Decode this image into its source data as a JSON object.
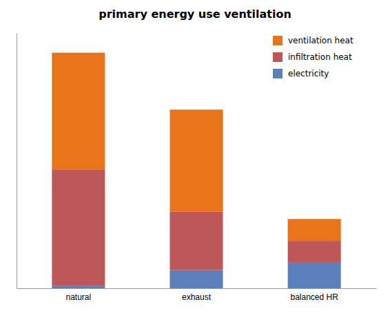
{
  "chart_data": {
    "type": "bar",
    "title": "primary energy use ventilation",
    "categories": [
      "natural",
      "exhaust",
      "balanced HR"
    ],
    "series": [
      {
        "name": "electricity",
        "color": "#5b7fbb",
        "values": [
          3,
          25,
          35
        ]
      },
      {
        "name": "infiltration heat",
        "color": "#be5757",
        "values": [
          160,
          80,
          30
        ]
      },
      {
        "name": "ventilation heat",
        "color": "#e8731a",
        "values": [
          160,
          140,
          30
        ]
      }
    ],
    "stacked": true,
    "ylim": [
      0,
      350
    ],
    "legend": "upper right",
    "tick_labels": "x"
  }
}
